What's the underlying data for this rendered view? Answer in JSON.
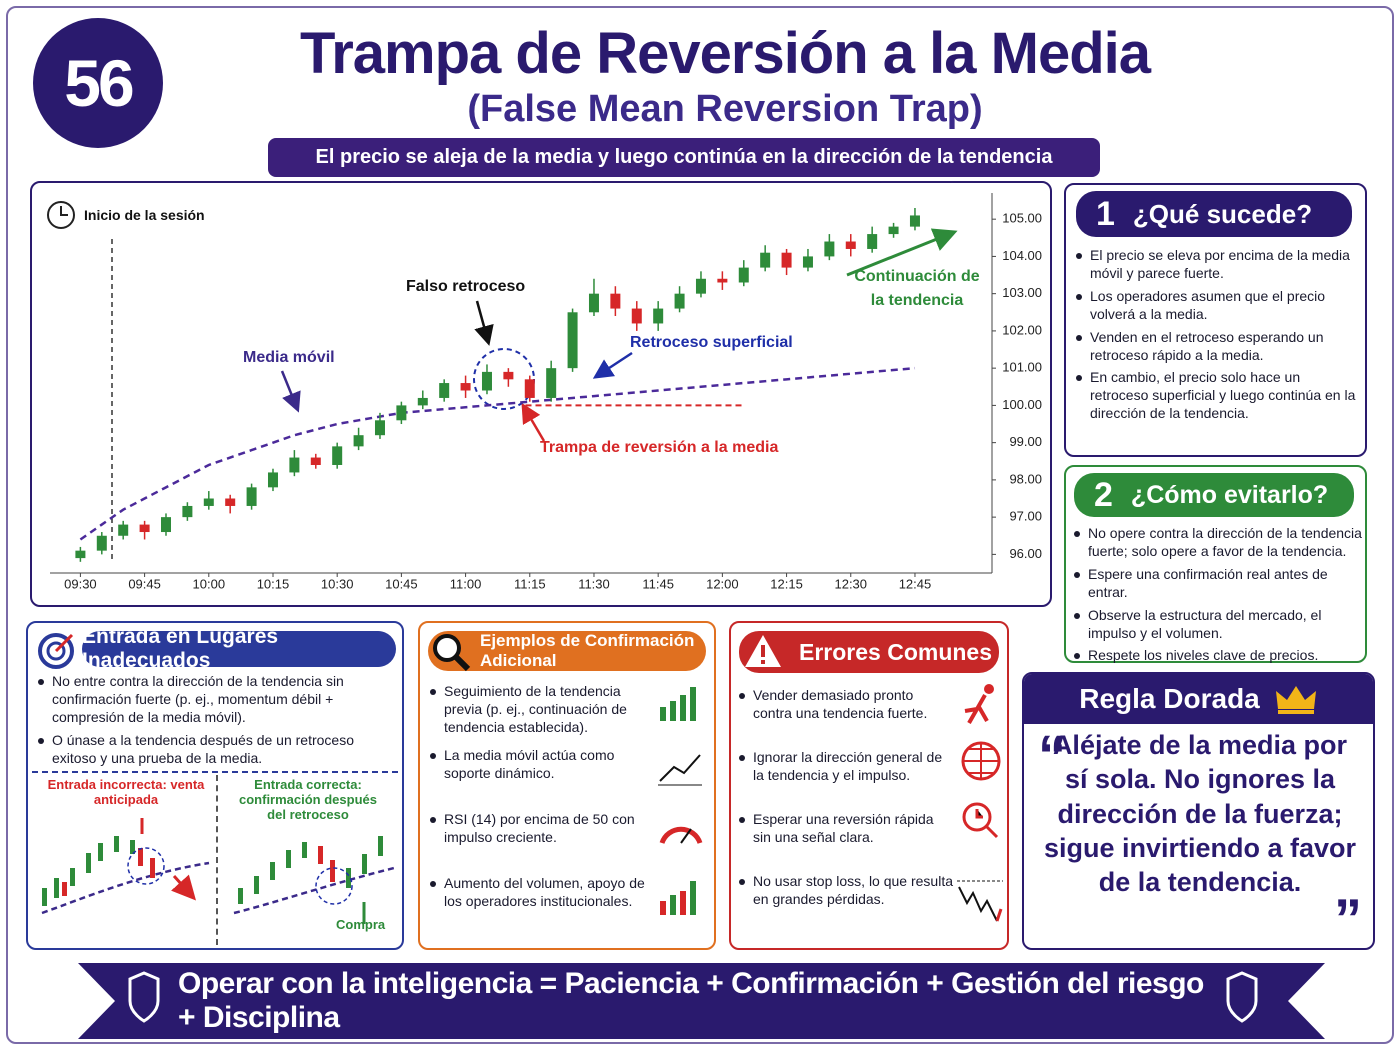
{
  "header": {
    "number": "56",
    "title": "Trampa de Reversión a la Media",
    "subtitle": "(False Mean Reversion Trap)",
    "tagline": "El precio se aleja de la media y luego continúa en la dirección de la tendencia"
  },
  "chart_data": {
    "type": "candlestick",
    "x": [
      570,
      575,
      580,
      585,
      590,
      595,
      600,
      605,
      610,
      615,
      620,
      625,
      630,
      635,
      640,
      645,
      650,
      655,
      660,
      665,
      670,
      675,
      680,
      685,
      690,
      695,
      700,
      705,
      710,
      715,
      720,
      725,
      730,
      735,
      740,
      745,
      750,
      755,
      760,
      765
    ],
    "open": [
      95.9,
      96.1,
      96.5,
      96.8,
      96.6,
      97.0,
      97.3,
      97.5,
      97.3,
      97.8,
      98.2,
      98.6,
      98.4,
      98.9,
      99.2,
      99.6,
      100.0,
      100.2,
      100.6,
      100.4,
      100.9,
      100.7,
      100.2,
      101.0,
      102.5,
      103.0,
      102.6,
      102.2,
      102.6,
      103.0,
      103.4,
      103.3,
      103.7,
      104.1,
      103.7,
      104.0,
      104.4,
      104.2,
      104.6,
      104.8
    ],
    "high": [
      96.2,
      96.6,
      96.9,
      96.9,
      97.1,
      97.4,
      97.7,
      97.6,
      97.9,
      98.3,
      98.8,
      98.7,
      99.0,
      99.4,
      99.8,
      100.1,
      100.4,
      100.7,
      100.8,
      101.1,
      101.0,
      100.8,
      101.2,
      102.6,
      103.4,
      103.2,
      102.8,
      102.8,
      103.2,
      103.6,
      103.6,
      103.9,
      104.3,
      104.2,
      104.2,
      104.6,
      104.6,
      104.8,
      104.9,
      105.3
    ],
    "low": [
      95.8,
      96.0,
      96.4,
      96.4,
      96.5,
      96.9,
      97.2,
      97.1,
      97.2,
      97.7,
      98.1,
      98.3,
      98.3,
      98.8,
      99.1,
      99.5,
      99.9,
      100.1,
      100.2,
      100.3,
      100.5,
      100.1,
      100.1,
      100.9,
      102.4,
      102.4,
      102.0,
      102.0,
      102.5,
      102.9,
      103.1,
      103.2,
      103.6,
      103.5,
      103.6,
      103.9,
      104.0,
      104.1,
      104.5,
      104.7
    ],
    "close": [
      96.1,
      96.5,
      96.8,
      96.6,
      97.0,
      97.3,
      97.5,
      97.3,
      97.8,
      98.2,
      98.6,
      98.4,
      98.9,
      99.2,
      99.6,
      100.0,
      100.2,
      100.6,
      100.4,
      100.9,
      100.7,
      100.2,
      101.0,
      102.5,
      103.0,
      102.6,
      102.2,
      102.6,
      103.0,
      103.4,
      103.3,
      103.7,
      104.1,
      103.7,
      104.0,
      104.4,
      104.2,
      104.6,
      104.8,
      105.1
    ],
    "up_color": "#2e8b3a",
    "down_color": "#d62728",
    "moving_average": {
      "color": "#4b2a9a",
      "values": [
        96.4,
        96.8,
        97.2,
        97.5,
        97.8,
        98.1,
        98.4,
        98.6,
        98.8,
        99.0,
        99.2,
        99.35,
        99.5,
        99.6,
        99.7,
        99.8,
        99.85,
        99.9,
        99.95,
        100.0,
        100.05,
        100.1,
        100.15,
        100.2,
        100.25,
        100.3,
        100.35,
        100.4,
        100.45,
        100.5,
        100.55,
        100.6,
        100.65,
        100.7,
        100.75,
        100.8,
        100.85,
        100.9,
        100.95,
        101.0
      ]
    },
    "trap_level": {
      "value": 100.0,
      "x": [
        674,
        725
      ],
      "color": "#d62728"
    },
    "xlim": [
      565,
      783
    ],
    "ylim": [
      95.5,
      105.3
    ],
    "xticks": [
      {
        "value": 570,
        "label": "09:30"
      },
      {
        "value": 585,
        "label": "09:45"
      },
      {
        "value": 600,
        "label": "10:00"
      },
      {
        "value": 615,
        "label": "10:15"
      },
      {
        "value": 630,
        "label": "10:30"
      },
      {
        "value": 645,
        "label": "10:45"
      },
      {
        "value": 660,
        "label": "11:00"
      },
      {
        "value": 675,
        "label": "11:15"
      },
      {
        "value": 690,
        "label": "11:30"
      },
      {
        "value": 705,
        "label": "11:45"
      },
      {
        "value": 720,
        "label": "12:00"
      },
      {
        "value": 735,
        "label": "12:15"
      },
      {
        "value": 750,
        "label": "12:30"
      },
      {
        "value": 765,
        "label": "12:45"
      }
    ],
    "yticks": [
      {
        "value": 96,
        "label": "96.00"
      },
      {
        "value": 97,
        "label": "97.00"
      },
      {
        "value": 98,
        "label": "98.00"
      },
      {
        "value": 99,
        "label": "99.00"
      },
      {
        "value": 100,
        "label": "100.00"
      },
      {
        "value": 101,
        "label": "101.00"
      },
      {
        "value": 102,
        "label": "102.00"
      },
      {
        "value": 103,
        "label": "103.00"
      },
      {
        "value": 104,
        "label": "104.00"
      },
      {
        "value": 105,
        "label": "105.00"
      }
    ],
    "annotations": {
      "session": "Inicio de la sesión",
      "false_pullback": "Falso retroceso",
      "moving_average": "Media móvil",
      "shallow_pullback": "Retroceso superficial",
      "trap": "Trampa de reversión a la media",
      "continuation": "Continuación de la tendencia"
    }
  },
  "what_happens": {
    "number": "1",
    "title": "¿Qué sucede?",
    "items": [
      "El precio se eleva por encima de la media móvil y parece fuerte.",
      "Los operadores asumen que el precio volverá a la media.",
      "Venden en el retroceso esperando un retroceso rápido a la media.",
      "En cambio, el precio solo hace un retroceso superficial y luego continúa en la dirección de la tendencia."
    ]
  },
  "avoid": {
    "number": "2",
    "title": "¿Cómo evitarlo?",
    "items": [
      "No opere contra la dirección de la tendencia fuerte; solo opere a favor de la tendencia.",
      "Espere una confirmación real antes de entrar.",
      "Observe la estructura del mercado, el impulso y el volumen.",
      "Respete los niveles clave de precios."
    ]
  },
  "golden_rule": {
    "title": "Regla Dorada",
    "quote": "Aléjate de la media por sí sola. No ignores la dirección de la fuerza; sigue invirtiendo a favor de la tendencia."
  },
  "wrong_entry": {
    "title": "Entrada en Lugares Inadecuados",
    "items": [
      "No entre contra la dirección de la tendencia sin confirmación fuerte (p. ej., momentum débil + compresión de la media móvil).",
      "O únase a la tendencia después de un retroceso exitoso y una prueba de la media."
    ],
    "incorrect": "Entrada incorrecta: venta anticipada",
    "correct": "Entrada correcta: confirmación después del retroceso",
    "buy": "Compra"
  },
  "confirmation": {
    "title": "Ejemplos de Confirmación Adicional",
    "items": [
      "Seguimiento de la tendencia previa (p. ej., continuación de tendencia establecida).",
      "La media móvil actúa como soporte dinámico.",
      "RSI (14) por encima de 50 con impulso creciente.",
      "Aumento del volumen, apoyo de los operadores institucionales."
    ]
  },
  "errors": {
    "title": "Errores Comunes",
    "items": [
      "Vender demasiado pronto contra una tendencia fuerte.",
      "Ignorar la dirección general de la tendencia y el impulso.",
      "Esperar una reversión rápida sin una señal clara.",
      "No usar stop loss, lo que resulta en grandes pérdidas."
    ]
  },
  "footer": {
    "text": "Operar con la inteligencia = Paciencia + Confirmación + Gestión del riesgo + Disciplina"
  }
}
